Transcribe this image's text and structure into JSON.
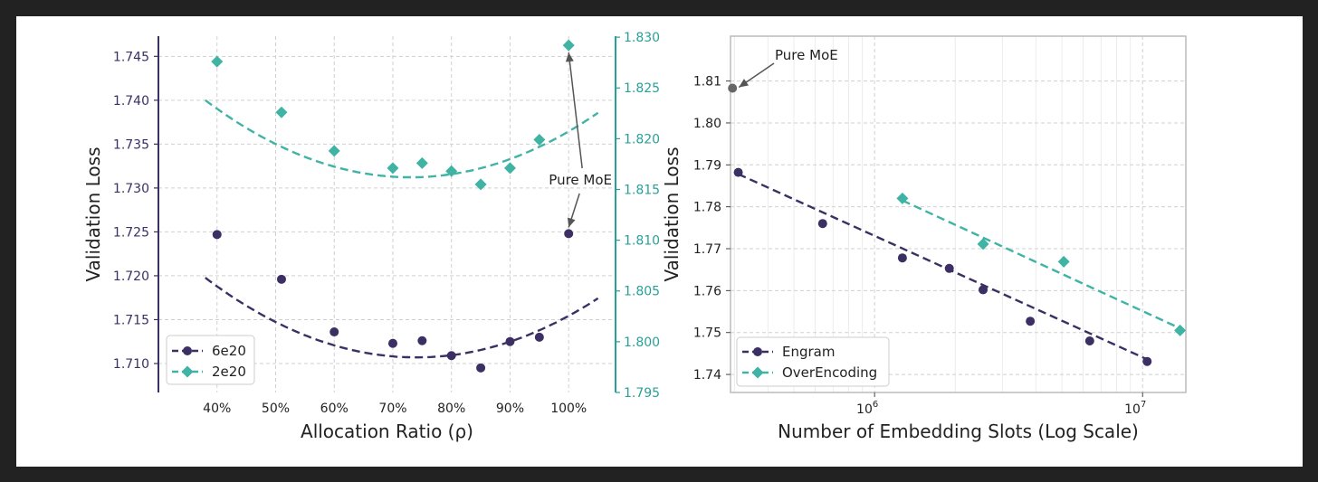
{
  "chart_data": [
    {
      "type": "scatter",
      "xlabel": "Allocation Ratio (ρ)",
      "ylabel": "Validation Loss",
      "x_tick_labels": [
        "40%",
        "50%",
        "60%",
        "70%",
        "80%",
        "90%",
        "100%"
      ],
      "x_ticks": [
        40,
        50,
        60,
        70,
        80,
        90,
        100
      ],
      "xlim": [
        30,
        108
      ],
      "y_left": {
        "lim": [
          1.7067,
          1.7473
        ],
        "ticks": [
          1.71,
          1.715,
          1.72,
          1.725,
          1.73,
          1.735,
          1.74,
          1.745
        ],
        "tick_labels": [
          "1.710",
          "1.715",
          "1.720",
          "1.725",
          "1.730",
          "1.735",
          "1.740",
          "1.745"
        ],
        "color": "#3b2f63"
      },
      "y_right": {
        "lim": [
          1.795,
          1.8301
        ],
        "ticks": [
          1.795,
          1.8,
          1.805,
          1.81,
          1.815,
          1.82,
          1.825,
          1.83
        ],
        "tick_labels": [
          "1.795",
          "1.800",
          "1.805",
          "1.810",
          "1.815",
          "1.820",
          "1.825",
          "1.830"
        ],
        "color": "#2aa198"
      },
      "series": [
        {
          "name": "6e20",
          "axis": "left",
          "marker": "circle",
          "color": "#3b2f63",
          "x": [
            40,
            51,
            60,
            70,
            75,
            80,
            85,
            90,
            95,
            100
          ],
          "y": [
            1.7247,
            1.7196,
            1.7136,
            1.7123,
            1.7126,
            1.7109,
            1.7095,
            1.7125,
            1.713,
            1.7248
          ],
          "fit": {
            "a": 7e-06,
            "h": 74,
            "k": 1.7107,
            "x_range": [
              38,
              105
            ]
          }
        },
        {
          "name": "2e20",
          "axis": "right",
          "marker": "diamond",
          "color": "#3fb3a4",
          "x": [
            40,
            51,
            60,
            70,
            75,
            80,
            85,
            90,
            95,
            100
          ],
          "y": [
            1.8276,
            1.8226,
            1.8188,
            1.8171,
            1.8176,
            1.8168,
            1.8155,
            1.8171,
            1.8199,
            1.8292
          ],
          "fit": {
            "a": 6.2e-06,
            "h": 73,
            "k": 1.8162,
            "x_range": [
              38,
              105
            ]
          }
        }
      ],
      "annotation": {
        "text": "Pure MoE"
      },
      "legend": "lower-left",
      "grid": true
    },
    {
      "type": "scatter",
      "xlabel": "Number of Embedding Slots (Log Scale)",
      "ylabel": "Validation Loss",
      "x_scale": "log",
      "xlim": [
        290000,
        14500000
      ],
      "x_ticks": [
        1000000,
        10000000
      ],
      "x_tick_labels": [
        {
          "base": "10",
          "exp": "6"
        },
        {
          "base": "10",
          "exp": "7"
        }
      ],
      "ylim": [
        1.7357,
        1.8207
      ],
      "y_ticks": [
        1.74,
        1.75,
        1.76,
        1.77,
        1.78,
        1.79,
        1.8,
        1.81
      ],
      "y_tick_labels": [
        "1.74",
        "1.75",
        "1.76",
        "1.77",
        "1.78",
        "1.79",
        "1.80",
        "1.81"
      ],
      "series": [
        {
          "name": "Engram",
          "marker": "circle",
          "color": "#3b2f63",
          "x": [
            310000,
            640000,
            1270000,
            1900000,
            2540000,
            3810000,
            6350000,
            10400000
          ],
          "y": [
            1.7882,
            1.776,
            1.7678,
            1.7653,
            1.7602,
            1.7527,
            1.748,
            1.7431
          ],
          "fit": {
            "x": [
              310000,
              10400000
            ],
            "y": [
              1.7878,
              1.7436
            ]
          }
        },
        {
          "name": "OverEncoding",
          "marker": "diamond",
          "color": "#3fb3a4",
          "x": [
            1270000,
            2540000,
            5080000,
            13800000
          ],
          "y": [
            1.782,
            1.7711,
            1.7669,
            1.7505
          ],
          "fit": {
            "x": [
              1270000,
              13800000
            ],
            "y": [
              1.7815,
              1.751
            ]
          }
        }
      ],
      "extra_point": {
        "x": 295000,
        "y": 1.8083,
        "color": "#666666"
      },
      "annotation": {
        "text": "Pure MoE"
      },
      "legend": "lower-left",
      "grid": true
    }
  ]
}
